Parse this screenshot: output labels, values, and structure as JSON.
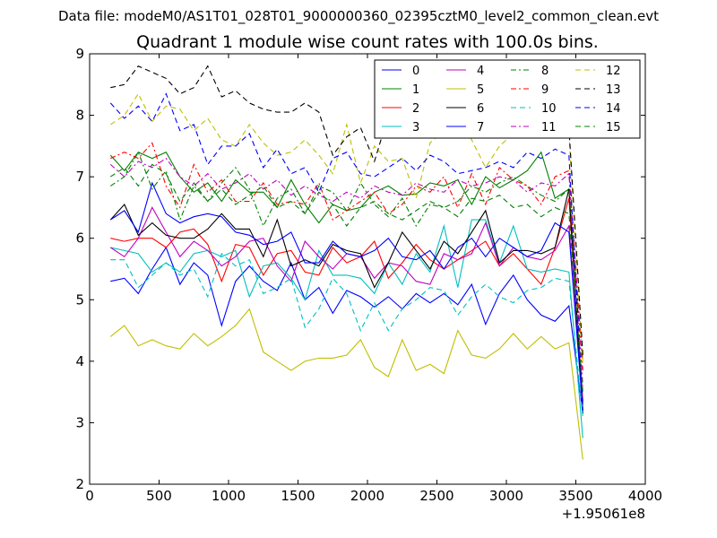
{
  "header": {
    "data_file": "Data file: modeM0/AS1T01_028T01_9000000360_02395cztM0_level2_common_clean.evt"
  },
  "chart_data": {
    "type": "line",
    "title": "Quadrant 1 module wise count rates with 100.0s bins.",
    "xlabel": "",
    "ylabel": "",
    "x_offset_label": "+1.95061e8",
    "xlim": [
      0,
      4000
    ],
    "ylim": [
      2,
      9
    ],
    "xticks": [
      0,
      500,
      1000,
      1500,
      2000,
      2500,
      3000,
      3500,
      4000
    ],
    "yticks": [
      2,
      3,
      4,
      5,
      6,
      7,
      8,
      9
    ],
    "legend_position": "top-right",
    "x": [
      150,
      250,
      350,
      450,
      550,
      650,
      750,
      850,
      950,
      1050,
      1150,
      1250,
      1350,
      1450,
      1550,
      1650,
      1750,
      1850,
      1950,
      2050,
      2150,
      2250,
      2350,
      2450,
      2550,
      2650,
      2750,
      2850,
      2950,
      3050,
      3150,
      3250,
      3350,
      3450,
      3550
    ],
    "series": [
      {
        "name": "0",
        "color": "#0000ff",
        "dash": "solid",
        "values": [
          5.3,
          5.35,
          5.1,
          5.5,
          5.85,
          5.25,
          5.6,
          5.4,
          4.58,
          5.3,
          5.55,
          5.3,
          5.15,
          5.6,
          5.0,
          5.2,
          4.78,
          5.15,
          5.05,
          4.88,
          5.05,
          4.85,
          5.1,
          4.95,
          5.1,
          4.92,
          5.25,
          4.6,
          5.1,
          5.4,
          5.0,
          4.75,
          4.65,
          4.9,
          3.15
        ]
      },
      {
        "name": "1",
        "color": "#008000",
        "dash": "solid",
        "values": [
          7.35,
          7.1,
          7.4,
          7.3,
          7.4,
          7.0,
          6.75,
          6.9,
          6.6,
          6.95,
          6.75,
          6.75,
          6.5,
          6.95,
          6.55,
          6.25,
          6.55,
          6.45,
          6.5,
          6.75,
          6.85,
          6.7,
          6.72,
          6.9,
          6.85,
          6.95,
          6.55,
          7.0,
          6.82,
          6.95,
          7.1,
          7.4,
          6.65,
          6.8,
          3.2
        ]
      },
      {
        "name": "2",
        "color": "#ff0000",
        "dash": "solid",
        "values": [
          6.0,
          5.95,
          6.0,
          6.0,
          5.85,
          6.1,
          6.15,
          5.9,
          5.3,
          5.9,
          5.85,
          5.4,
          5.75,
          5.8,
          5.45,
          5.4,
          5.85,
          5.6,
          5.7,
          5.95,
          5.35,
          5.6,
          5.9,
          5.65,
          5.5,
          5.65,
          5.8,
          5.95,
          5.55,
          5.75,
          5.5,
          5.25,
          5.85,
          6.65,
          3.35
        ]
      },
      {
        "name": "3",
        "color": "#00bfbf",
        "dash": "solid",
        "values": [
          5.85,
          5.8,
          5.75,
          5.45,
          5.6,
          5.45,
          5.75,
          5.8,
          5.7,
          5.8,
          5.05,
          5.55,
          5.6,
          5.35,
          5.0,
          5.8,
          5.4,
          5.4,
          5.35,
          5.1,
          5.6,
          5.25,
          5.75,
          5.45,
          6.2,
          5.2,
          6.3,
          6.3,
          5.6,
          6.2,
          5.5,
          5.45,
          5.5,
          5.45,
          2.75
        ]
      },
      {
        "name": "4",
        "color": "#bf00bf",
        "dash": "solid",
        "values": [
          5.85,
          5.7,
          6.0,
          6.5,
          6.1,
          5.7,
          5.95,
          5.8,
          5.55,
          5.7,
          5.95,
          6.0,
          5.55,
          5.3,
          5.95,
          5.7,
          5.5,
          5.75,
          5.7,
          5.35,
          5.6,
          5.55,
          5.3,
          5.25,
          5.75,
          5.65,
          5.75,
          6.25,
          5.55,
          5.85,
          5.7,
          5.65,
          5.8,
          6.2,
          3.3
        ]
      },
      {
        "name": "5",
        "color": "#bfbf00",
        "dash": "solid",
        "values": [
          4.4,
          4.58,
          4.25,
          4.35,
          4.25,
          4.2,
          4.45,
          4.25,
          4.4,
          4.58,
          4.85,
          4.15,
          4.0,
          3.85,
          4.0,
          4.05,
          4.05,
          4.1,
          4.35,
          3.9,
          3.75,
          4.35,
          3.85,
          3.95,
          3.8,
          4.5,
          4.1,
          4.05,
          4.2,
          4.45,
          4.2,
          4.4,
          4.2,
          4.3,
          2.4
        ]
      },
      {
        "name": "6",
        "color": "#000000",
        "dash": "solid",
        "values": [
          6.3,
          6.55,
          6.05,
          6.25,
          6.05,
          6.0,
          6.0,
          6.15,
          6.4,
          6.15,
          6.15,
          5.7,
          6.3,
          5.55,
          5.65,
          5.55,
          5.9,
          5.8,
          5.75,
          5.2,
          5.6,
          6.1,
          5.8,
          5.5,
          5.95,
          5.75,
          6.1,
          6.45,
          5.6,
          5.8,
          5.8,
          5.75,
          5.85,
          6.8,
          3.15
        ]
      },
      {
        "name": "7",
        "color": "#0000ff",
        "dash": "solid",
        "values": [
          6.3,
          6.45,
          6.1,
          6.9,
          6.4,
          6.25,
          6.35,
          6.4,
          6.35,
          6.1,
          6.05,
          5.9,
          5.95,
          6.1,
          5.6,
          5.6,
          5.95,
          5.75,
          5.7,
          5.8,
          6.0,
          5.7,
          5.65,
          5.8,
          5.5,
          5.85,
          6.0,
          5.7,
          6.0,
          5.85,
          5.7,
          5.8,
          6.25,
          6.1,
          3.2
        ]
      },
      {
        "name": "8",
        "color": "#008000",
        "dash": "dashdot",
        "values": [
          6.85,
          7.0,
          7.4,
          6.8,
          7.1,
          6.3,
          6.85,
          6.6,
          6.9,
          7.15,
          6.8,
          6.2,
          6.65,
          6.8,
          6.4,
          6.85,
          6.75,
          6.45,
          6.9,
          6.55,
          6.35,
          6.65,
          6.2,
          6.55,
          6.5,
          6.6,
          6.85,
          6.75,
          6.9,
          7.0,
          6.85,
          6.7,
          6.6,
          6.8,
          4.0
        ]
      },
      {
        "name": "9",
        "color": "#ff0000",
        "dash": "dashdot",
        "values": [
          7.3,
          7.4,
          7.3,
          7.55,
          6.85,
          6.5,
          7.2,
          6.75,
          6.95,
          6.6,
          6.6,
          6.9,
          6.55,
          6.6,
          6.55,
          6.9,
          6.3,
          6.45,
          6.6,
          6.75,
          6.4,
          6.55,
          6.85,
          6.75,
          7.0,
          6.5,
          7.05,
          6.55,
          7.15,
          6.95,
          6.85,
          6.55,
          7.0,
          7.1,
          3.85
        ]
      },
      {
        "name": "10",
        "color": "#00bfbf",
        "dash": "dashed",
        "values": [
          5.65,
          5.65,
          5.2,
          5.4,
          5.6,
          5.4,
          5.5,
          5.05,
          5.75,
          5.55,
          5.65,
          5.1,
          5.2,
          5.35,
          4.55,
          4.85,
          5.35,
          5.1,
          4.5,
          4.95,
          4.5,
          4.85,
          5.0,
          5.2,
          5.15,
          4.75,
          5.05,
          5.25,
          5.05,
          4.95,
          5.15,
          5.2,
          5.35,
          5.3,
          3.1
        ]
      },
      {
        "name": "11",
        "color": "#bf00bf",
        "dash": "dashdot",
        "values": [
          7.2,
          7.0,
          7.25,
          7.15,
          7.3,
          7.0,
          6.85,
          7.05,
          6.8,
          6.9,
          7.05,
          6.8,
          6.95,
          6.7,
          6.85,
          6.7,
          6.6,
          6.75,
          6.65,
          6.85,
          6.75,
          6.7,
          6.9,
          6.8,
          6.75,
          6.95,
          6.85,
          6.9,
          7.0,
          6.95,
          6.75,
          6.9,
          6.85,
          7.05,
          3.6
        ]
      },
      {
        "name": "12",
        "color": "#bfbf00",
        "dash": "dashed",
        "values": [
          7.85,
          8.0,
          8.35,
          7.9,
          8.15,
          8.1,
          7.75,
          7.95,
          7.6,
          7.5,
          7.85,
          7.55,
          7.35,
          7.4,
          7.6,
          7.35,
          7.05,
          7.85,
          6.9,
          7.5,
          7.25,
          7.3,
          6.65,
          7.55,
          7.75,
          7.95,
          7.6,
          7.15,
          7.5,
          7.7,
          7.75,
          7.8,
          7.75,
          7.7,
          3.95
        ]
      },
      {
        "name": "13",
        "color": "#000000",
        "dash": "dashed",
        "values": [
          8.45,
          8.5,
          8.8,
          8.7,
          8.6,
          8.35,
          8.45,
          8.8,
          8.3,
          8.4,
          8.2,
          8.1,
          8.05,
          8.05,
          8.2,
          8.05,
          7.35,
          7.65,
          7.8,
          7.25,
          8.0,
          7.9,
          7.7,
          7.85,
          8.05,
          8.2,
          8.0,
          8.1,
          7.7,
          7.75,
          7.8,
          7.9,
          7.75,
          7.8,
          4.1
        ]
      },
      {
        "name": "14",
        "color": "#0000ff",
        "dash": "dashed",
        "values": [
          8.2,
          7.95,
          8.15,
          7.9,
          8.35,
          7.75,
          7.85,
          7.2,
          7.5,
          7.5,
          7.7,
          7.15,
          7.45,
          7.05,
          7.15,
          6.75,
          7.3,
          7.4,
          7.05,
          7.0,
          7.15,
          7.3,
          7.1,
          7.35,
          7.25,
          7.05,
          7.1,
          7.15,
          7.25,
          7.15,
          7.4,
          7.3,
          7.45,
          7.35,
          3.3
        ]
      },
      {
        "name": "15",
        "color": "#008000",
        "dash": "dashed",
        "values": [
          7.0,
          7.15,
          6.85,
          7.2,
          7.05,
          6.6,
          6.9,
          6.6,
          6.8,
          6.55,
          6.7,
          6.85,
          6.5,
          6.6,
          6.4,
          6.75,
          6.55,
          6.2,
          6.5,
          6.6,
          6.4,
          6.3,
          6.45,
          6.6,
          6.5,
          6.35,
          6.65,
          6.6,
          6.7,
          6.5,
          6.55,
          6.35,
          6.5,
          6.4,
          3.5
        ]
      }
    ]
  }
}
